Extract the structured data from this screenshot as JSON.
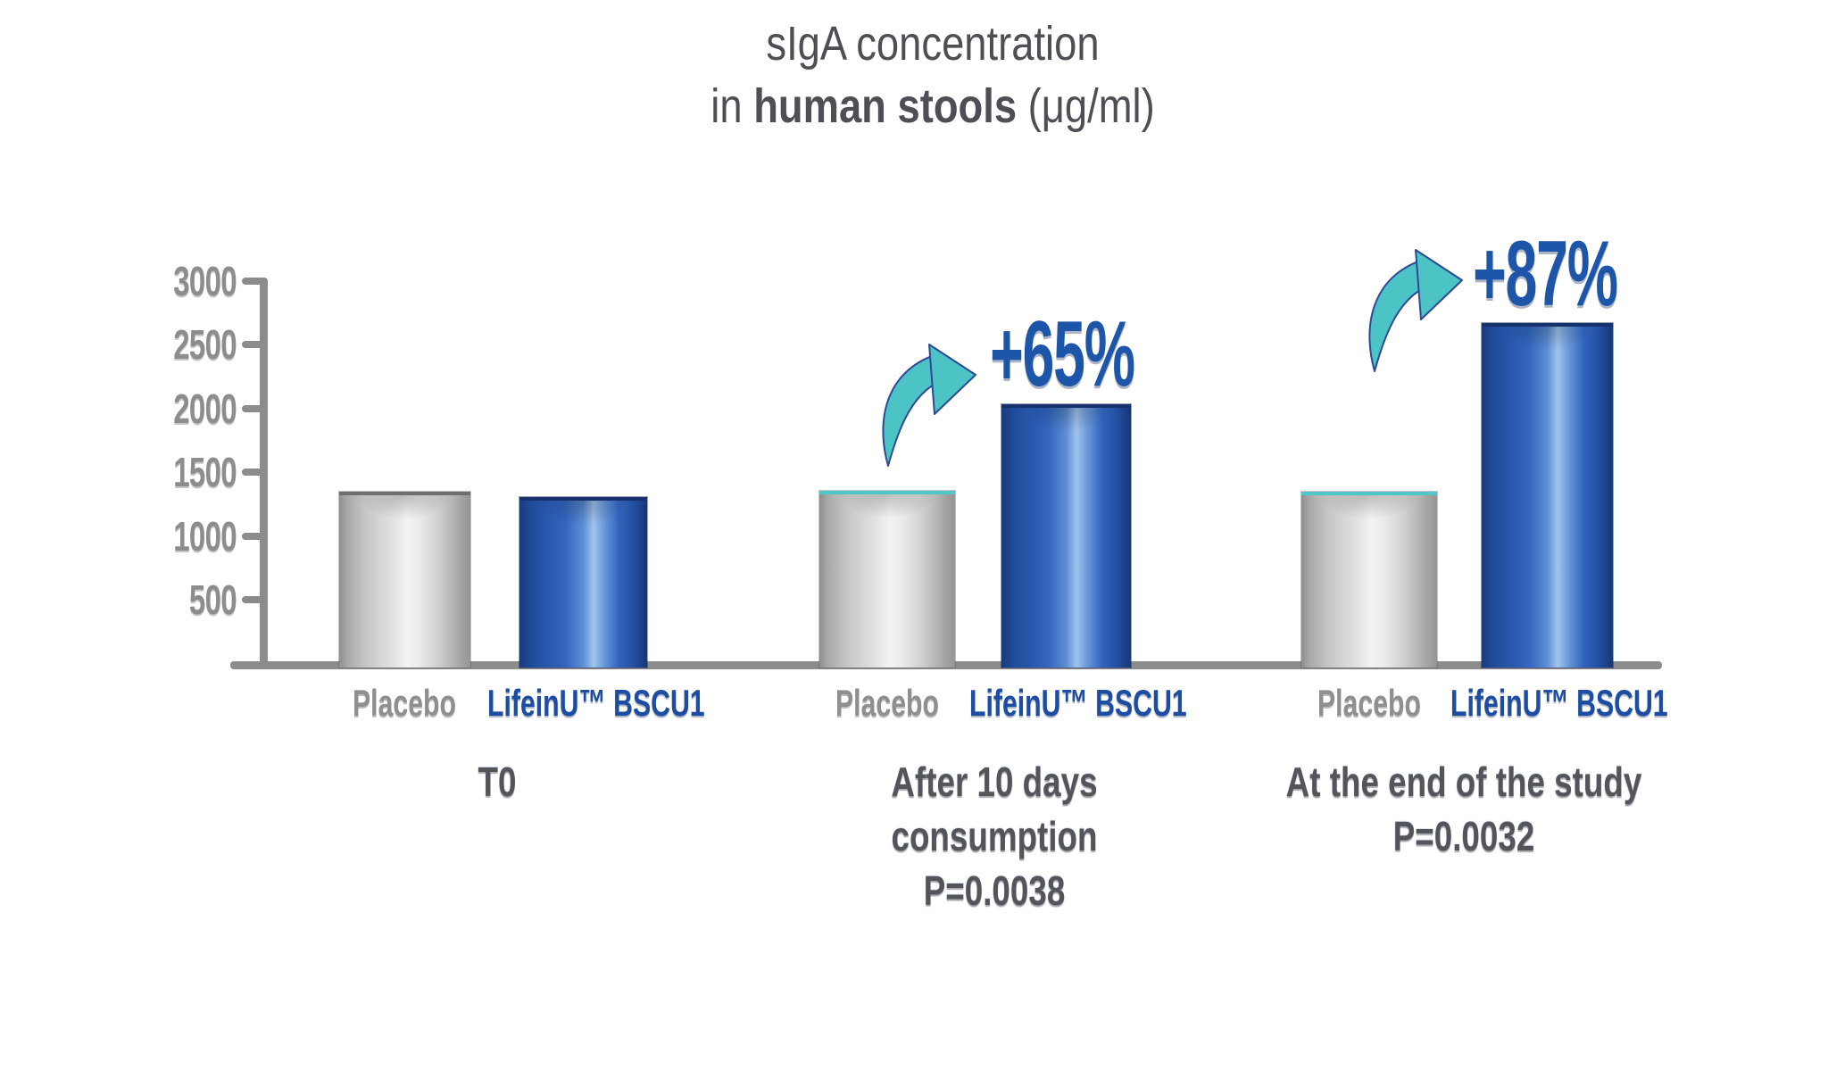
{
  "title": {
    "line1": "sIgA concentration",
    "line2_prefix": "in ",
    "line2_bold": "human stools",
    "line2_suffix": " (μg/ml)"
  },
  "chart_data": {
    "type": "bar",
    "title": "sIgA concentration in human stools (μg/ml)",
    "xlabel": "",
    "ylabel": "",
    "ylim": [
      0,
      3000
    ],
    "yticks": [
      "3000",
      "2500",
      "2000",
      "1500",
      "1000",
      "500"
    ],
    "grid": false,
    "legend_position": "below-bars",
    "categories": [
      "T0",
      "After 10 days consumption P=0.0038",
      "At the end of the study P=0.0032"
    ],
    "series": [
      {
        "name": "Placebo",
        "color": "#c7c7c5",
        "values": [
          1340,
          1350,
          1340
        ]
      },
      {
        "name": "LifeinU™ BSCU1",
        "color": "#2a5cb2",
        "values": [
          1300,
          2020,
          2650
        ]
      }
    ],
    "annotations": [
      {
        "group": "After 10 days consumption",
        "text": "+65%"
      },
      {
        "group": "At the end of the study",
        "text": "+87%"
      }
    ]
  },
  "groups": [
    {
      "caption_lines": [
        "T0"
      ]
    },
    {
      "caption_lines": [
        "After 10 days",
        "consumption",
        "P=0.0038"
      ],
      "pct": "+65%"
    },
    {
      "caption_lines": [
        "At the end of the study",
        "P=0.0032"
      ],
      "pct": "+87%"
    }
  ],
  "colors": {
    "accent_teal": "#4cc4c6",
    "deep_blue": "#1d55a8",
    "bar_blue_dark": "#1a3a7c",
    "bar_blue_light": "#9fc4ee",
    "gray_text": "#8d8d8d",
    "caption_text": "#54545b",
    "axis_gray": "#8c8c8c"
  }
}
